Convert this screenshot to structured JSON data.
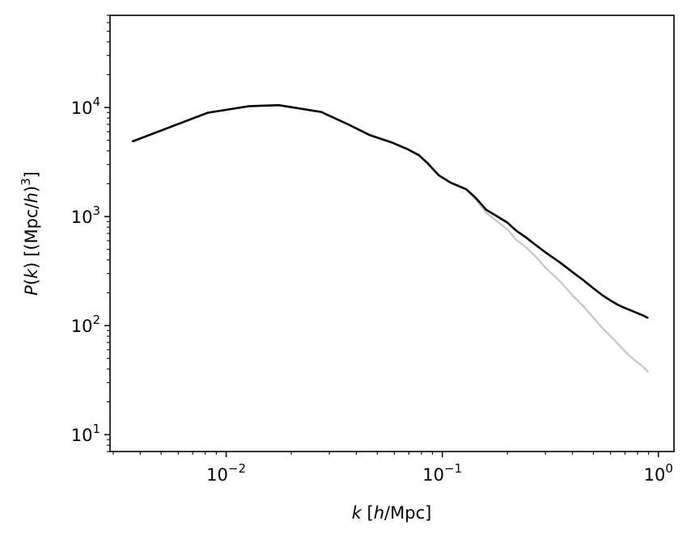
{
  "chart_data": {
    "type": "line",
    "xscale": "log",
    "yscale": "log",
    "xlim": [
      0.0029,
      1.18
    ],
    "ylim": [
      7.0,
      70000
    ],
    "grid": false,
    "legend": "none",
    "xlabel": {
      "italic": "k",
      "rest": " [",
      "italic2": "h",
      "tail": "/Mpc]"
    },
    "ylabel": {
      "italic": "P",
      "open": "(",
      "italic_k": "k",
      "close": ")",
      "mid": " [(Mpc/",
      "italic_h": "h",
      "end": ")",
      "sup": "3",
      "closing": "]"
    },
    "x_ticks": [
      {
        "base": "10",
        "exp": "−2",
        "value": 0.01
      },
      {
        "base": "10",
        "exp": "−1",
        "value": 0.1
      },
      {
        "base": "10",
        "exp": "0",
        "value": 1.0
      }
    ],
    "y_ticks": [
      {
        "base": "10",
        "exp": "1",
        "value": 10
      },
      {
        "base": "10",
        "exp": "2",
        "value": 100
      },
      {
        "base": "10",
        "exp": "3",
        "value": 1000
      },
      {
        "base": "10",
        "exp": "4",
        "value": 10000
      }
    ],
    "series": [
      {
        "color": "#c8c8c8",
        "width": 2.4,
        "x": [
          0.0037,
          0.0082,
          0.0128,
          0.0175,
          0.0275,
          0.0367,
          0.046,
          0.058,
          0.069,
          0.078,
          0.086,
          0.096,
          0.109,
          0.129,
          0.142,
          0.16,
          0.18,
          0.2,
          0.22,
          0.245,
          0.27,
          0.3,
          0.35,
          0.4,
          0.45,
          0.5,
          0.55,
          0.6,
          0.65,
          0.7,
          0.75,
          0.8,
          0.85,
          0.89
        ],
        "y": [
          4900,
          8950,
          10300,
          10500,
          9100,
          7000,
          5600,
          4800,
          4150,
          3650,
          3050,
          2400,
          2050,
          1780,
          1450,
          1080,
          900,
          760,
          610,
          520,
          430,
          340,
          255,
          190,
          150,
          118,
          95,
          80,
          68,
          58,
          51,
          46,
          42,
          38
        ]
      },
      {
        "color": "#000000",
        "width": 2.6,
        "x": [
          0.0037,
          0.0082,
          0.0128,
          0.0175,
          0.0275,
          0.0367,
          0.046,
          0.058,
          0.069,
          0.078,
          0.086,
          0.096,
          0.109,
          0.129,
          0.142,
          0.16,
          0.18,
          0.2,
          0.22,
          0.245,
          0.27,
          0.3,
          0.35,
          0.4,
          0.45,
          0.5,
          0.55,
          0.6,
          0.65,
          0.7,
          0.75,
          0.8,
          0.85,
          0.89
        ],
        "y": [
          4900,
          8950,
          10300,
          10500,
          9100,
          7000,
          5600,
          4800,
          4150,
          3650,
          3050,
          2400,
          2050,
          1780,
          1500,
          1150,
          1000,
          880,
          740,
          640,
          550,
          470,
          380,
          310,
          260,
          220,
          190,
          170,
          155,
          145,
          137,
          130,
          124,
          118
        ]
      }
    ]
  }
}
